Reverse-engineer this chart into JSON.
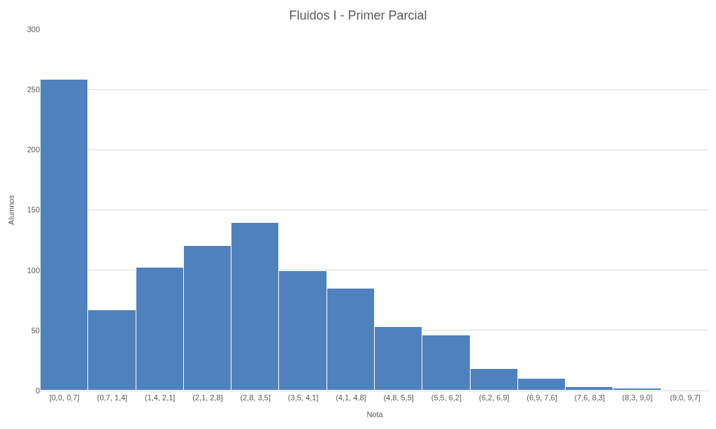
{
  "chart_data": {
    "type": "bar",
    "title": "Fluidos I - Primer Parcial",
    "xlabel": "Nota",
    "ylabel": "Alumnos",
    "categories": [
      "[0,0, 0,7]",
      "(0,7, 1,4]",
      "(1,4, 2,1]",
      "(2,1, 2,8]",
      "(2,8, 3,5]",
      "(3,5, 4,1]",
      "(4,1, 4,8]",
      "(4,8, 5,5]",
      "(5,5, 6,2]",
      "(6,2, 6,9]",
      "(6,9, 7,6]",
      "(7,6, 8,3]",
      "(8,3, 9,0]",
      "(9,0, 9,7]"
    ],
    "values": [
      258,
      67,
      102,
      120,
      139,
      99,
      85,
      53,
      46,
      18,
      10,
      3,
      2,
      0
    ],
    "color": "#4f81bd",
    "ylim": [
      0,
      300
    ],
    "yticks": [
      0,
      50,
      100,
      150,
      200,
      250,
      300
    ],
    "grid": "y"
  }
}
